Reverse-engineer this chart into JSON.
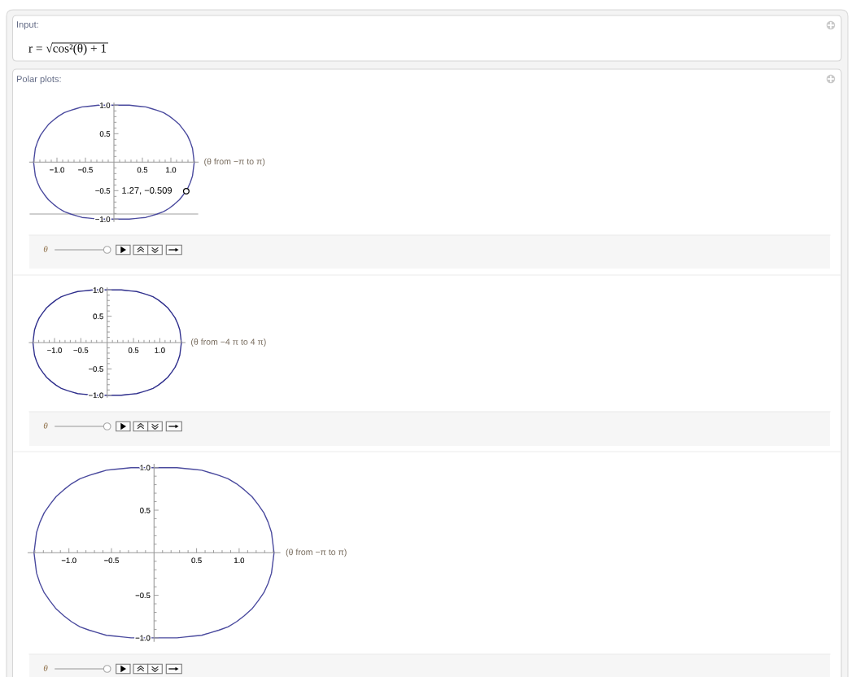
{
  "chart_data": [
    {
      "type": "other",
      "title": "Input:",
      "annotations": [
        "r = √cos²(θ) + 1"
      ]
    },
    {
      "type": "line",
      "title": "Polar plots:",
      "x": [
        -1.41,
        -1.38,
        -1.34,
        -1.29,
        -1.22,
        -1.15,
        -1.06,
        -0.97,
        -0.87,
        -0.76,
        -0.66,
        -0.56,
        -0.46,
        -0.36,
        -0.27,
        -0.18,
        -0.09,
        0,
        0.09,
        0.18,
        0.27,
        0.36,
        0.46,
        0.56,
        0.66,
        0.76,
        0.87,
        0.97,
        1.06,
        1.15,
        1.22,
        1.29,
        1.34,
        1.38,
        1.41
      ],
      "series": [
        {
          "type": "line",
          "color": "#4a4a9e",
          "values": [
            0,
            0.24,
            0.36,
            0.47,
            0.57,
            0.66,
            0.74,
            0.81,
            0.87,
            0.91,
            0.94,
            0.97,
            0.98,
            0.99,
            1,
            1,
            1,
            1,
            1,
            1,
            1,
            0.99,
            0.98,
            0.97,
            0.94,
            0.91,
            0.87,
            0.81,
            0.74,
            0.66,
            0.57,
            0.47,
            0.36,
            0.24,
            0
          ]
        },
        {
          "type": "line",
          "color": "#4a4a9e",
          "values": [
            0,
            -0.24,
            -0.36,
            -0.47,
            -0.57,
            -0.66,
            -0.74,
            -0.81,
            -0.87,
            -0.91,
            -0.94,
            -0.97,
            -0.98,
            -0.99,
            -1,
            -1,
            -1,
            -1,
            -1,
            -1,
            -1,
            -0.99,
            -0.98,
            -0.97,
            -0.94,
            -0.91,
            -0.87,
            -0.81,
            -0.74,
            -0.66,
            -0.57,
            -0.47,
            -0.36,
            -0.24,
            0
          ]
        },
        {
          "type": "scatter",
          "color": "#000000",
          "marker": "circle",
          "x": [
            1.27
          ],
          "values": [
            -0.509
          ],
          "value_labels": [
            "1.27, −0.509"
          ]
        }
      ],
      "ref_lines": [
        {
          "axis": "y",
          "value": -0.91,
          "color": "#a0a0a0"
        }
      ],
      "xlim": [
        -1.48,
        1.48
      ],
      "ylim": [
        -1.04,
        1.04
      ],
      "xticks": [
        {
          "value": -1.4,
          "label": null
        },
        {
          "value": -1.3,
          "label": null
        },
        {
          "value": -1.2,
          "label": null
        },
        {
          "value": -1.1,
          "label": null
        },
        {
          "value": -1,
          "label": "−1.0"
        },
        {
          "value": -0.9,
          "label": null
        },
        {
          "value": -0.8,
          "label": null
        },
        {
          "value": -0.7,
          "label": null
        },
        {
          "value": -0.6,
          "label": null
        },
        {
          "value": -0.5,
          "label": "−0.5"
        },
        {
          "value": -0.4,
          "label": null
        },
        {
          "value": -0.3,
          "label": null
        },
        {
          "value": -0.2,
          "label": null
        },
        {
          "value": -0.1,
          "label": null
        },
        {
          "value": 0.1,
          "label": null
        },
        {
          "value": 0.2,
          "label": null
        },
        {
          "value": 0.3,
          "label": null
        },
        {
          "value": 0.4,
          "label": null
        },
        {
          "value": 0.5,
          "label": "0.5"
        },
        {
          "value": 0.6,
          "label": null
        },
        {
          "value": 0.7,
          "label": null
        },
        {
          "value": 0.8,
          "label": null
        },
        {
          "value": 0.9,
          "label": null
        },
        {
          "value": 1,
          "label": "1.0"
        },
        {
          "value": 1.1,
          "label": null
        },
        {
          "value": 1.2,
          "label": null
        },
        {
          "value": 1.3,
          "label": null
        },
        {
          "value": 1.4,
          "label": null
        }
      ],
      "yticks": [
        {
          "value": -1,
          "label": "−1.0"
        },
        {
          "value": -0.9,
          "label": null
        },
        {
          "value": -0.8,
          "label": null
        },
        {
          "value": -0.7,
          "label": null
        },
        {
          "value": -0.6,
          "label": null
        },
        {
          "value": -0.5,
          "label": "−0.5"
        },
        {
          "value": -0.4,
          "label": null
        },
        {
          "value": -0.3,
          "label": null
        },
        {
          "value": -0.2,
          "label": null
        },
        {
          "value": -0.1,
          "label": null
        },
        {
          "value": 0.1,
          "label": null
        },
        {
          "value": 0.2,
          "label": null
        },
        {
          "value": 0.3,
          "label": null
        },
        {
          "value": 0.4,
          "label": null
        },
        {
          "value": 0.5,
          "label": "0.5"
        },
        {
          "value": 0.6,
          "label": null
        },
        {
          "value": 0.7,
          "label": null
        },
        {
          "value": 0.8,
          "label": null
        },
        {
          "value": 0.9,
          "label": null
        },
        {
          "value": 1,
          "label": "1.0"
        }
      ],
      "annotations": [
        "(θ from −π to π)",
        "θ"
      ]
    },
    {
      "type": "line",
      "x": [
        -1.41,
        -1.38,
        -1.34,
        -1.29,
        -1.22,
        -1.15,
        -1.06,
        -0.97,
        -0.87,
        -0.76,
        -0.66,
        -0.56,
        -0.46,
        -0.36,
        -0.27,
        -0.18,
        -0.09,
        0,
        0.09,
        0.18,
        0.27,
        0.36,
        0.46,
        0.56,
        0.66,
        0.76,
        0.87,
        0.97,
        1.06,
        1.15,
        1.22,
        1.29,
        1.34,
        1.38,
        1.41
      ],
      "series": [
        {
          "type": "line",
          "color": "#2e2e8c",
          "values": [
            0,
            0.24,
            0.36,
            0.47,
            0.57,
            0.66,
            0.74,
            0.81,
            0.87,
            0.91,
            0.94,
            0.97,
            0.98,
            0.99,
            1,
            1,
            1,
            1,
            1,
            1,
            1,
            0.99,
            0.98,
            0.97,
            0.94,
            0.91,
            0.87,
            0.81,
            0.74,
            0.66,
            0.57,
            0.47,
            0.36,
            0.24,
            0
          ]
        },
        {
          "type": "line",
          "color": "#2e2e8c",
          "values": [
            0,
            -0.24,
            -0.36,
            -0.47,
            -0.57,
            -0.66,
            -0.74,
            -0.81,
            -0.87,
            -0.91,
            -0.94,
            -0.97,
            -0.98,
            -0.99,
            -1,
            -1,
            -1,
            -1,
            -1,
            -1,
            -1,
            -0.99,
            -0.98,
            -0.97,
            -0.94,
            -0.91,
            -0.87,
            -0.81,
            -0.74,
            -0.66,
            -0.57,
            -0.47,
            -0.36,
            -0.24,
            0
          ]
        }
      ],
      "xlim": [
        -1.48,
        1.48
      ],
      "ylim": [
        -1.04,
        1.04
      ],
      "xticks": [
        {
          "value": -1.4,
          "label": null
        },
        {
          "value": -1.3,
          "label": null
        },
        {
          "value": -1.2,
          "label": null
        },
        {
          "value": -1.1,
          "label": null
        },
        {
          "value": -1,
          "label": "−1.0"
        },
        {
          "value": -0.9,
          "label": null
        },
        {
          "value": -0.8,
          "label": null
        },
        {
          "value": -0.7,
          "label": null
        },
        {
          "value": -0.6,
          "label": null
        },
        {
          "value": -0.5,
          "label": "−0.5"
        },
        {
          "value": -0.4,
          "label": null
        },
        {
          "value": -0.3,
          "label": null
        },
        {
          "value": -0.2,
          "label": null
        },
        {
          "value": -0.1,
          "label": null
        },
        {
          "value": 0.1,
          "label": null
        },
        {
          "value": 0.2,
          "label": null
        },
        {
          "value": 0.3,
          "label": null
        },
        {
          "value": 0.4,
          "label": null
        },
        {
          "value": 0.5,
          "label": "0.5"
        },
        {
          "value": 0.6,
          "label": null
        },
        {
          "value": 0.7,
          "label": null
        },
        {
          "value": 0.8,
          "label": null
        },
        {
          "value": 0.9,
          "label": null
        },
        {
          "value": 1,
          "label": "1.0"
        },
        {
          "value": 1.1,
          "label": null
        },
        {
          "value": 1.2,
          "label": null
        },
        {
          "value": 1.3,
          "label": null
        },
        {
          "value": 1.4,
          "label": null
        }
      ],
      "yticks": [
        {
          "value": -1,
          "label": "−1.0"
        },
        {
          "value": -0.9,
          "label": null
        },
        {
          "value": -0.8,
          "label": null
        },
        {
          "value": -0.7,
          "label": null
        },
        {
          "value": -0.6,
          "label": null
        },
        {
          "value": -0.5,
          "label": "−0.5"
        },
        {
          "value": -0.4,
          "label": null
        },
        {
          "value": -0.3,
          "label": null
        },
        {
          "value": -0.2,
          "label": null
        },
        {
          "value": -0.1,
          "label": null
        },
        {
          "value": 0.1,
          "label": null
        },
        {
          "value": 0.2,
          "label": null
        },
        {
          "value": 0.3,
          "label": null
        },
        {
          "value": 0.4,
          "label": null
        },
        {
          "value": 0.5,
          "label": "0.5"
        },
        {
          "value": 0.6,
          "label": null
        },
        {
          "value": 0.7,
          "label": null
        },
        {
          "value": 0.8,
          "label": null
        },
        {
          "value": 0.9,
          "label": null
        },
        {
          "value": 1,
          "label": "1.0"
        }
      ],
      "annotations": [
        "(θ from −4 π to 4 π)",
        "θ"
      ]
    },
    {
      "type": "line",
      "x": [
        -1.41,
        -1.38,
        -1.34,
        -1.29,
        -1.22,
        -1.15,
        -1.06,
        -0.97,
        -0.87,
        -0.76,
        -0.66,
        -0.56,
        -0.46,
        -0.36,
        -0.27,
        -0.18,
        -0.09,
        0,
        0.09,
        0.18,
        0.27,
        0.36,
        0.46,
        0.56,
        0.66,
        0.76,
        0.87,
        0.97,
        1.06,
        1.15,
        1.22,
        1.29,
        1.34,
        1.38,
        1.41
      ],
      "series": [
        {
          "type": "line",
          "color": "#4a4a9e",
          "values": [
            0,
            0.24,
            0.36,
            0.47,
            0.57,
            0.66,
            0.74,
            0.81,
            0.87,
            0.91,
            0.94,
            0.97,
            0.98,
            0.99,
            1,
            1,
            1,
            1,
            1,
            1,
            1,
            0.99,
            0.98,
            0.97,
            0.94,
            0.91,
            0.87,
            0.81,
            0.74,
            0.66,
            0.57,
            0.47,
            0.36,
            0.24,
            0
          ]
        },
        {
          "type": "line",
          "color": "#4a4a9e",
          "values": [
            0,
            -0.24,
            -0.36,
            -0.47,
            -0.57,
            -0.66,
            -0.74,
            -0.81,
            -0.87,
            -0.91,
            -0.94,
            -0.97,
            -0.98,
            -0.99,
            -1,
            -1,
            -1,
            -1,
            -1,
            -1,
            -1,
            -0.99,
            -0.98,
            -0.97,
            -0.94,
            -0.91,
            -0.87,
            -0.81,
            -0.74,
            -0.66,
            -0.57,
            -0.47,
            -0.36,
            -0.24,
            0
          ]
        }
      ],
      "xlim": [
        -1.48,
        1.48
      ],
      "ylim": [
        -1.04,
        1.04
      ],
      "xticks": [
        {
          "value": -1.4,
          "label": null
        },
        {
          "value": -1.3,
          "label": null
        },
        {
          "value": -1.2,
          "label": null
        },
        {
          "value": -1.1,
          "label": null
        },
        {
          "value": -1,
          "label": "−1.0"
        },
        {
          "value": -0.9,
          "label": null
        },
        {
          "value": -0.8,
          "label": null
        },
        {
          "value": -0.7,
          "label": null
        },
        {
          "value": -0.6,
          "label": null
        },
        {
          "value": -0.5,
          "label": "−0.5"
        },
        {
          "value": -0.4,
          "label": null
        },
        {
          "value": -0.3,
          "label": null
        },
        {
          "value": -0.2,
          "label": null
        },
        {
          "value": -0.1,
          "label": null
        },
        {
          "value": 0.1,
          "label": null
        },
        {
          "value": 0.2,
          "label": null
        },
        {
          "value": 0.3,
          "label": null
        },
        {
          "value": 0.4,
          "label": null
        },
        {
          "value": 0.5,
          "label": "0.5"
        },
        {
          "value": 0.6,
          "label": null
        },
        {
          "value": 0.7,
          "label": null
        },
        {
          "value": 0.8,
          "label": null
        },
        {
          "value": 0.9,
          "label": null
        },
        {
          "value": 1,
          "label": "1.0"
        },
        {
          "value": 1.1,
          "label": null
        },
        {
          "value": 1.2,
          "label": null
        },
        {
          "value": 1.3,
          "label": null
        },
        {
          "value": 1.4,
          "label": null
        }
      ],
      "yticks": [
        {
          "value": -1,
          "label": "−1.0"
        },
        {
          "value": -0.9,
          "label": null
        },
        {
          "value": -0.8,
          "label": null
        },
        {
          "value": -0.7,
          "label": null
        },
        {
          "value": -0.6,
          "label": null
        },
        {
          "value": -0.5,
          "label": "−0.5"
        },
        {
          "value": -0.4,
          "label": null
        },
        {
          "value": -0.3,
          "label": null
        },
        {
          "value": -0.2,
          "label": null
        },
        {
          "value": -0.1,
          "label": null
        },
        {
          "value": 0.1,
          "label": null
        },
        {
          "value": 0.2,
          "label": null
        },
        {
          "value": 0.3,
          "label": null
        },
        {
          "value": 0.4,
          "label": null
        },
        {
          "value": 0.5,
          "label": "0.5"
        },
        {
          "value": 0.6,
          "label": null
        },
        {
          "value": 0.7,
          "label": null
        },
        {
          "value": 0.8,
          "label": null
        },
        {
          "value": 0.9,
          "label": null
        },
        {
          "value": 1,
          "label": "1.0"
        }
      ],
      "annotations": [
        "(θ from −π to π)",
        "θ"
      ]
    }
  ]
}
